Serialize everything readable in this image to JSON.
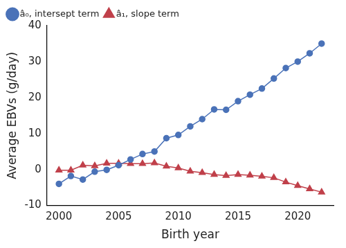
{
  "chart_data": {
    "type": "line",
    "x_label": "Birth year",
    "y_label": "Average EBVs (g/day)",
    "x": [
      2000,
      2001,
      2002,
      2003,
      2004,
      2005,
      2006,
      2007,
      2008,
      2009,
      2010,
      2011,
      2012,
      2013,
      2014,
      2015,
      2016,
      2017,
      2018,
      2019,
      2020,
      2021,
      2022
    ],
    "series": [
      {
        "name": "â₀, intersept term",
        "color": "#4a72b8",
        "marker": "circle",
        "values": [
          -4,
          -1.8,
          -2.8,
          -0.6,
          -0.1,
          1.2,
          2.8,
          4.3,
          5,
          8.7,
          9.6,
          12,
          14,
          16.7,
          16.6,
          19,
          20.8,
          22.5,
          25.3,
          28.2,
          30,
          32.3,
          35
        ]
      },
      {
        "name": "â₁, slope term",
        "color": "#c0404a",
        "marker": "triangle",
        "values": [
          -0.2,
          -0.2,
          1.2,
          1,
          1.7,
          1.7,
          1.6,
          1.6,
          1.8,
          0.9,
          0.4,
          -0.5,
          -0.9,
          -1.4,
          -1.7,
          -1.4,
          -1.6,
          -1.9,
          -2.3,
          -3.5,
          -4.5,
          -5.4,
          -6.3
        ]
      }
    ],
    "xlim": [
      1999,
      2023
    ],
    "xticks": [
      2000,
      2005,
      2010,
      2015,
      2020
    ],
    "ylim": [
      -10,
      40
    ],
    "yticks": [
      -10,
      0,
      10,
      20,
      30,
      40
    ],
    "grid": false,
    "legend": "upper left"
  }
}
